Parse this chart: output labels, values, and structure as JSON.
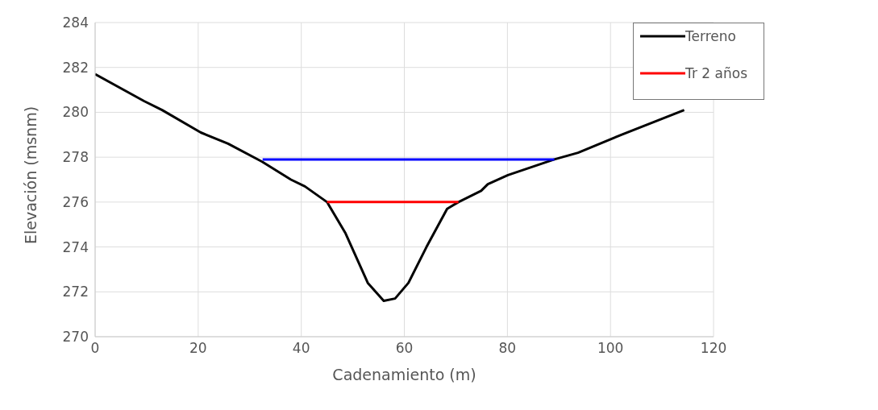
{
  "chart_data": {
    "type": "line",
    "xlabel": "Cadenamiento (m)",
    "ylabel": "Elevación (msnm)",
    "xlim": [
      0,
      120
    ],
    "xticks": [
      0,
      20,
      40,
      60,
      80,
      100,
      120
    ],
    "ylim": [
      270,
      284
    ],
    "yticks": [
      270,
      272,
      274,
      276,
      278,
      280,
      282,
      284
    ],
    "grid": true,
    "legend": "top right",
    "marker": "none",
    "line_style": "solid",
    "series": [
      {
        "name": "Terreno",
        "color": "#000000",
        "x": [
          0,
          9.5,
          13,
          20.5,
          25.8,
          32.4,
          38,
          40.7,
          45,
          48.6,
          52.9,
          56,
          58.2,
          60.8,
          64.3,
          68.3,
          70.5,
          74.9,
          76.2,
          80.1,
          89.1,
          93.7,
          102.1,
          114.3
        ],
        "values": [
          281.7,
          280.5,
          280.1,
          279.1,
          278.6,
          277.8,
          277.0,
          276.7,
          276.0,
          274.6,
          272.4,
          271.6,
          271.7,
          272.4,
          274.0,
          275.7,
          276.0,
          276.5,
          276.8,
          277.2,
          277.9,
          278.2,
          279.0,
          280.1
        ]
      },
      {
        "name": "Tr 2 años",
        "color": "#ff0000",
        "x": [
          45,
          70.5
        ],
        "values": [
          276.0,
          276.0
        ]
      },
      {
        "color": "#0000ff",
        "x": [
          32.5,
          89.1
        ],
        "values": [
          277.9,
          277.9
        ]
      }
    ]
  }
}
